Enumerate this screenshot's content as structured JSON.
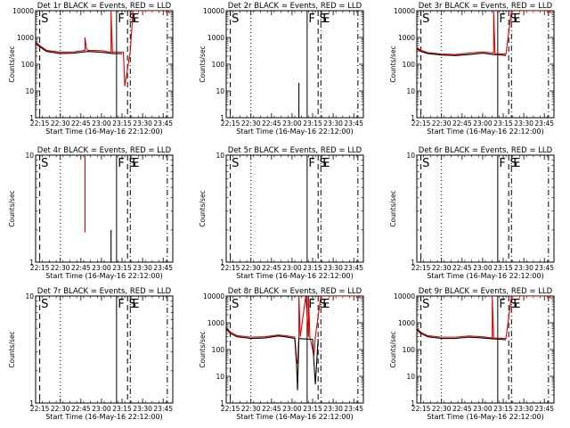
{
  "figure": {
    "title_template": "Det {id} BLACK = Events, RED = LLD",
    "xlabel": "Start Time (16-May-16 22:12:00)",
    "ylabel": "Counts/sec",
    "colors": {
      "events": "#000000",
      "lld": "#e00000",
      "axes": "#000000",
      "background": "#ffffff"
    }
  },
  "chart_data": [
    {
      "type": "line",
      "det": "1r",
      "title": "Det 1r BLACK = Events, RED = LLD",
      "xlabel": "Start Time (16-May-16 22:12:00)",
      "ylabel": "Counts/sec",
      "xlim": [
        "22:12",
        "23:52"
      ],
      "x_ticks": [
        "22:15",
        "22:30",
        "22:45",
        "23:00",
        "23:15",
        "23:30",
        "23:45"
      ],
      "yscale": "log",
      "ylim": [
        1,
        10000
      ],
      "y_ticks": [
        "1",
        "10",
        "100",
        "1000",
        "10000"
      ],
      "markers": [
        {
          "label": "S",
          "time": "22:15",
          "style": "dashed"
        },
        {
          "label": "",
          "time": "22:30",
          "style": "dotted"
        },
        {
          "label": "F",
          "time": "23:11",
          "style": "solid"
        },
        {
          "label": "S",
          "time": "23:19",
          "style": "dashed"
        },
        {
          "label": "E",
          "time": "23:21",
          "style": "dash-dot"
        },
        {
          "label": "",
          "time": "23:48",
          "style": "dash-dot"
        }
      ],
      "series": [
        {
          "name": "Events",
          "color": "#000000",
          "x": [
            "22:12",
            "22:15",
            "22:20",
            "22:30",
            "22:40",
            "22:50",
            "23:00",
            "23:08",
            "23:14",
            "23:15"
          ],
          "y": [
            600,
            450,
            300,
            250,
            260,
            300,
            280,
            250,
            250,
            240
          ]
        },
        {
          "name": "LLD",
          "color": "#e00000",
          "x": [
            "22:12",
            "22:15",
            "22:20",
            "22:30",
            "22:40",
            "22:48",
            "22:48",
            "22:49",
            "22:50",
            "23:00",
            "23:07",
            "23:07",
            "23:08",
            "23:10",
            "23:16",
            "23:17",
            "23:21",
            "23:23",
            "23:48",
            "23:50"
          ],
          "y": [
            700,
            500,
            330,
            280,
            290,
            330,
            1000,
            400,
            330,
            320,
            280,
            10000,
            280,
            290,
            280,
            15,
            300,
            10000,
            10000,
            8000
          ]
        }
      ]
    },
    {
      "type": "line",
      "det": "2r",
      "title": "Det 2r BLACK = Events, RED = LLD",
      "xlabel": "Start Time (16-May-16 22:12:00)",
      "ylabel": "Counts/sec",
      "xlim": [
        "22:12",
        "23:52"
      ],
      "x_ticks": [
        "22:15",
        "22:30",
        "22:45",
        "23:00",
        "23:15",
        "23:30",
        "23:45"
      ],
      "yscale": "log",
      "ylim": [
        1,
        10000
      ],
      "y_ticks": [
        "1",
        "10",
        "100",
        "1000",
        "10000"
      ],
      "markers": [
        {
          "label": "S",
          "time": "22:15",
          "style": "dashed"
        },
        {
          "label": "",
          "time": "22:30",
          "style": "dotted"
        },
        {
          "label": "F",
          "time": "23:11",
          "style": "solid"
        },
        {
          "label": "S",
          "time": "23:19",
          "style": "dashed"
        },
        {
          "label": "E",
          "time": "23:21",
          "style": "dash-dot"
        },
        {
          "label": "",
          "time": "23:48",
          "style": "dash-dot"
        }
      ],
      "series": [
        {
          "name": "Events",
          "color": "#000000",
          "x": [
            "23:05",
            "23:05"
          ],
          "y": [
            1,
            20
          ]
        }
      ]
    },
    {
      "type": "line",
      "det": "3r",
      "title": "Det 3r BLACK = Events, RED = LLD",
      "xlabel": "Start Time (16-May-16 22:12:00)",
      "ylabel": "Counts/sec",
      "xlim": [
        "22:12",
        "23:52"
      ],
      "x_ticks": [
        "22:15",
        "22:30",
        "22:45",
        "23:00",
        "23:15",
        "23:30",
        "23:45"
      ],
      "yscale": "log",
      "ylim": [
        1,
        10000
      ],
      "y_ticks": [
        "1",
        "10",
        "100",
        "1000",
        "10000"
      ],
      "markers": [
        {
          "label": "S",
          "time": "22:15",
          "style": "dashed"
        },
        {
          "label": "",
          "time": "22:30",
          "style": "dotted"
        },
        {
          "label": "F",
          "time": "23:11",
          "style": "solid"
        },
        {
          "label": "S",
          "time": "23:19",
          "style": "dashed"
        },
        {
          "label": "E",
          "time": "23:21",
          "style": "dash-dot"
        },
        {
          "label": "",
          "time": "23:48",
          "style": "dash-dot"
        }
      ],
      "series": [
        {
          "name": "Events",
          "color": "#000000",
          "x": [
            "22:12",
            "22:15",
            "22:20",
            "22:30",
            "22:40",
            "22:50",
            "23:00",
            "23:08",
            "23:14",
            "23:17"
          ],
          "y": [
            380,
            300,
            250,
            220,
            210,
            230,
            260,
            230,
            220,
            210
          ]
        },
        {
          "name": "LLD",
          "color": "#e00000",
          "x": [
            "22:12",
            "22:15",
            "22:20",
            "22:30",
            "22:40",
            "22:50",
            "23:00",
            "23:08",
            "23:08",
            "23:09",
            "23:17",
            "23:21",
            "23:48",
            "23:50"
          ],
          "y": [
            420,
            330,
            270,
            240,
            230,
            260,
            290,
            260,
            10000,
            250,
            240,
            10000,
            10000,
            8000
          ]
        }
      ]
    },
    {
      "type": "line",
      "det": "4r",
      "title": "Det 4r BLACK = Events, RED = LLD",
      "xlabel": "Start Time (16-May-16 22:12:00)",
      "ylabel": "Counts/sec",
      "xlim": [
        "22:12",
        "23:52"
      ],
      "x_ticks": [
        "22:15",
        "22:30",
        "22:45",
        "23:00",
        "23:15",
        "23:30",
        "23:45"
      ],
      "yscale": "log",
      "ylim": [
        1,
        10
      ],
      "y_ticks": [
        "1",
        "10"
      ],
      "markers": [
        {
          "label": "S",
          "time": "22:15",
          "style": "dashed"
        },
        {
          "label": "",
          "time": "22:30",
          "style": "dotted"
        },
        {
          "label": "F",
          "time": "23:11",
          "style": "solid"
        },
        {
          "label": "S",
          "time": "23:19",
          "style": "dashed"
        },
        {
          "label": "E",
          "time": "23:21",
          "style": "dash-dot"
        },
        {
          "label": "",
          "time": "23:48",
          "style": "dash-dot"
        }
      ],
      "series": [
        {
          "name": "Events",
          "color": "#000000",
          "x": [
            "23:07",
            "23:07"
          ],
          "y": [
            1,
            2
          ]
        },
        {
          "name": "LLD",
          "color": "#e00000",
          "x": [
            "22:48",
            "22:48"
          ],
          "y": [
            1.9,
            10
          ]
        }
      ]
    },
    {
      "type": "line",
      "det": "5r",
      "title": "Det 5r BLACK = Events, RED = LLD",
      "xlabel": "Start Time (16-May-16 22:12:00)",
      "ylabel": "Counts/sec",
      "xlim": [
        "22:12",
        "23:52"
      ],
      "x_ticks": [
        "22:15",
        "22:30",
        "22:45",
        "23:00",
        "23:15",
        "23:30",
        "23:45"
      ],
      "yscale": "log",
      "ylim": [
        1,
        10
      ],
      "y_ticks": [
        "1",
        "10"
      ],
      "markers": [
        {
          "label": "S",
          "time": "22:15",
          "style": "dashed"
        },
        {
          "label": "",
          "time": "22:30",
          "style": "dotted"
        },
        {
          "label": "F",
          "time": "23:11",
          "style": "solid"
        },
        {
          "label": "S",
          "time": "23:19",
          "style": "dashed"
        },
        {
          "label": "E",
          "time": "23:21",
          "style": "dash-dot"
        },
        {
          "label": "",
          "time": "23:48",
          "style": "dash-dot"
        }
      ],
      "series": []
    },
    {
      "type": "line",
      "det": "6r",
      "title": "Det 6r BLACK = Events, RED = LLD",
      "xlabel": "Start Time (16-May-16 22:12:00)",
      "ylabel": "Counts/sec",
      "xlim": [
        "22:12",
        "23:52"
      ],
      "x_ticks": [
        "22:15",
        "22:30",
        "22:45",
        "23:00",
        "23:15",
        "23:30",
        "23:45"
      ],
      "yscale": "log",
      "ylim": [
        1,
        10
      ],
      "y_ticks": [
        "1",
        "10"
      ],
      "markers": [
        {
          "label": "S",
          "time": "22:15",
          "style": "dashed"
        },
        {
          "label": "",
          "time": "22:30",
          "style": "dotted"
        },
        {
          "label": "F",
          "time": "23:11",
          "style": "solid"
        },
        {
          "label": "S",
          "time": "23:19",
          "style": "dashed"
        },
        {
          "label": "E",
          "time": "23:21",
          "style": "dash-dot"
        },
        {
          "label": "",
          "time": "23:48",
          "style": "dash-dot"
        }
      ],
      "series": []
    },
    {
      "type": "line",
      "det": "7r",
      "title": "Det 7r BLACK = Events, RED = LLD",
      "xlabel": "Start Time (16-May-16 22:12:00)",
      "ylabel": "Counts/sec",
      "xlim": [
        "22:12",
        "23:52"
      ],
      "x_ticks": [
        "22:15",
        "22:30",
        "22:45",
        "23:00",
        "23:15",
        "23:30",
        "23:45"
      ],
      "yscale": "log",
      "ylim": [
        1,
        10
      ],
      "y_ticks": [
        "1",
        "10"
      ],
      "markers": [
        {
          "label": "S",
          "time": "22:15",
          "style": "dashed"
        },
        {
          "label": "",
          "time": "22:30",
          "style": "dotted"
        },
        {
          "label": "F",
          "time": "23:11",
          "style": "solid"
        },
        {
          "label": "S",
          "time": "23:19",
          "style": "dashed"
        },
        {
          "label": "E",
          "time": "23:21",
          "style": "dash-dot"
        },
        {
          "label": "",
          "time": "23:48",
          "style": "dash-dot"
        }
      ],
      "series": []
    },
    {
      "type": "line",
      "det": "8r",
      "title": "Det 8r BLACK = Events, RED = LLD",
      "xlabel": "Start Time (16-May-16 22:12:00)",
      "ylabel": "Counts/sec",
      "xlim": [
        "22:12",
        "23:52"
      ],
      "x_ticks": [
        "22:15",
        "22:30",
        "22:45",
        "23:00",
        "23:15",
        "23:30",
        "23:45"
      ],
      "yscale": "log",
      "ylim": [
        1,
        10000
      ],
      "y_ticks": [
        "1",
        "10",
        "100",
        "1000",
        "10000"
      ],
      "markers": [
        {
          "label": "S",
          "time": "22:15",
          "style": "dashed"
        },
        {
          "label": "",
          "time": "22:30",
          "style": "dotted"
        },
        {
          "label": "F",
          "time": "23:11",
          "style": "solid"
        },
        {
          "label": "S",
          "time": "23:19",
          "style": "dashed"
        },
        {
          "label": "E",
          "time": "23:21",
          "style": "dash-dot"
        },
        {
          "label": "",
          "time": "23:48",
          "style": "dash-dot"
        }
      ],
      "series": [
        {
          "name": "Events",
          "color": "#000000",
          "x": [
            "22:12",
            "22:15",
            "22:20",
            "22:30",
            "22:40",
            "22:50",
            "22:55",
            "23:02",
            "23:03",
            "23:04",
            "23:05",
            "23:08",
            "23:10",
            "23:15",
            "23:16",
            "23:17",
            "23:19"
          ],
          "y": [
            600,
            400,
            300,
            260,
            270,
            320,
            300,
            260,
            60,
            3,
            260,
            250,
            250,
            240,
            30,
            5,
            250
          ]
        },
        {
          "name": "LLD",
          "color": "#e00000",
          "x": [
            "22:12",
            "22:15",
            "22:20",
            "22:30",
            "22:40",
            "22:50",
            "22:55",
            "23:02",
            "23:03",
            "23:04",
            "23:05",
            "23:05",
            "23:06",
            "23:10",
            "23:12",
            "23:12",
            "23:13",
            "23:16",
            "23:17",
            "23:21",
            "23:24",
            "23:48",
            "23:50"
          ],
          "y": [
            700,
            450,
            330,
            290,
            300,
            350,
            330,
            290,
            40,
            30,
            300,
            10000,
            300,
            10000,
            300,
            10000,
            280,
            60,
            300,
            10000,
            10000,
            10000,
            8000
          ]
        }
      ]
    },
    {
      "type": "line",
      "det": "9r",
      "title": "Det 9r BLACK = Events, RED = LLD",
      "xlabel": "Start Time (16-May-16 22:12:00)",
      "ylabel": "Counts/sec",
      "xlim": [
        "22:12",
        "23:52"
      ],
      "x_ticks": [
        "22:15",
        "22:30",
        "22:45",
        "23:00",
        "23:15",
        "23:30",
        "23:45"
      ],
      "yscale": "log",
      "ylim": [
        1,
        10000
      ],
      "y_ticks": [
        "1",
        "10",
        "100",
        "1000",
        "10000"
      ],
      "markers": [
        {
          "label": "S",
          "time": "22:15",
          "style": "dashed"
        },
        {
          "label": "",
          "time": "22:30",
          "style": "dotted"
        },
        {
          "label": "F",
          "time": "23:11",
          "style": "solid"
        },
        {
          "label": "S",
          "time": "23:19",
          "style": "dashed"
        },
        {
          "label": "E",
          "time": "23:21",
          "style": "dash-dot"
        },
        {
          "label": "",
          "time": "23:48",
          "style": "dash-dot"
        }
      ],
      "series": [
        {
          "name": "Events",
          "color": "#000000",
          "x": [
            "22:12",
            "22:15",
            "22:20",
            "22:30",
            "22:40",
            "22:50",
            "23:00",
            "23:08",
            "23:14",
            "23:17"
          ],
          "y": [
            550,
            400,
            300,
            260,
            260,
            290,
            270,
            250,
            240,
            230
          ]
        },
        {
          "name": "LLD",
          "color": "#e00000",
          "x": [
            "22:12",
            "22:15",
            "22:20",
            "22:30",
            "22:40",
            "22:50",
            "23:00",
            "23:07",
            "23:07",
            "23:08",
            "23:17",
            "23:21",
            "23:48",
            "23:50"
          ],
          "y": [
            620,
            440,
            330,
            290,
            290,
            320,
            300,
            270,
            10000,
            270,
            260,
            10000,
            10000,
            8000
          ]
        }
      ]
    }
  ]
}
